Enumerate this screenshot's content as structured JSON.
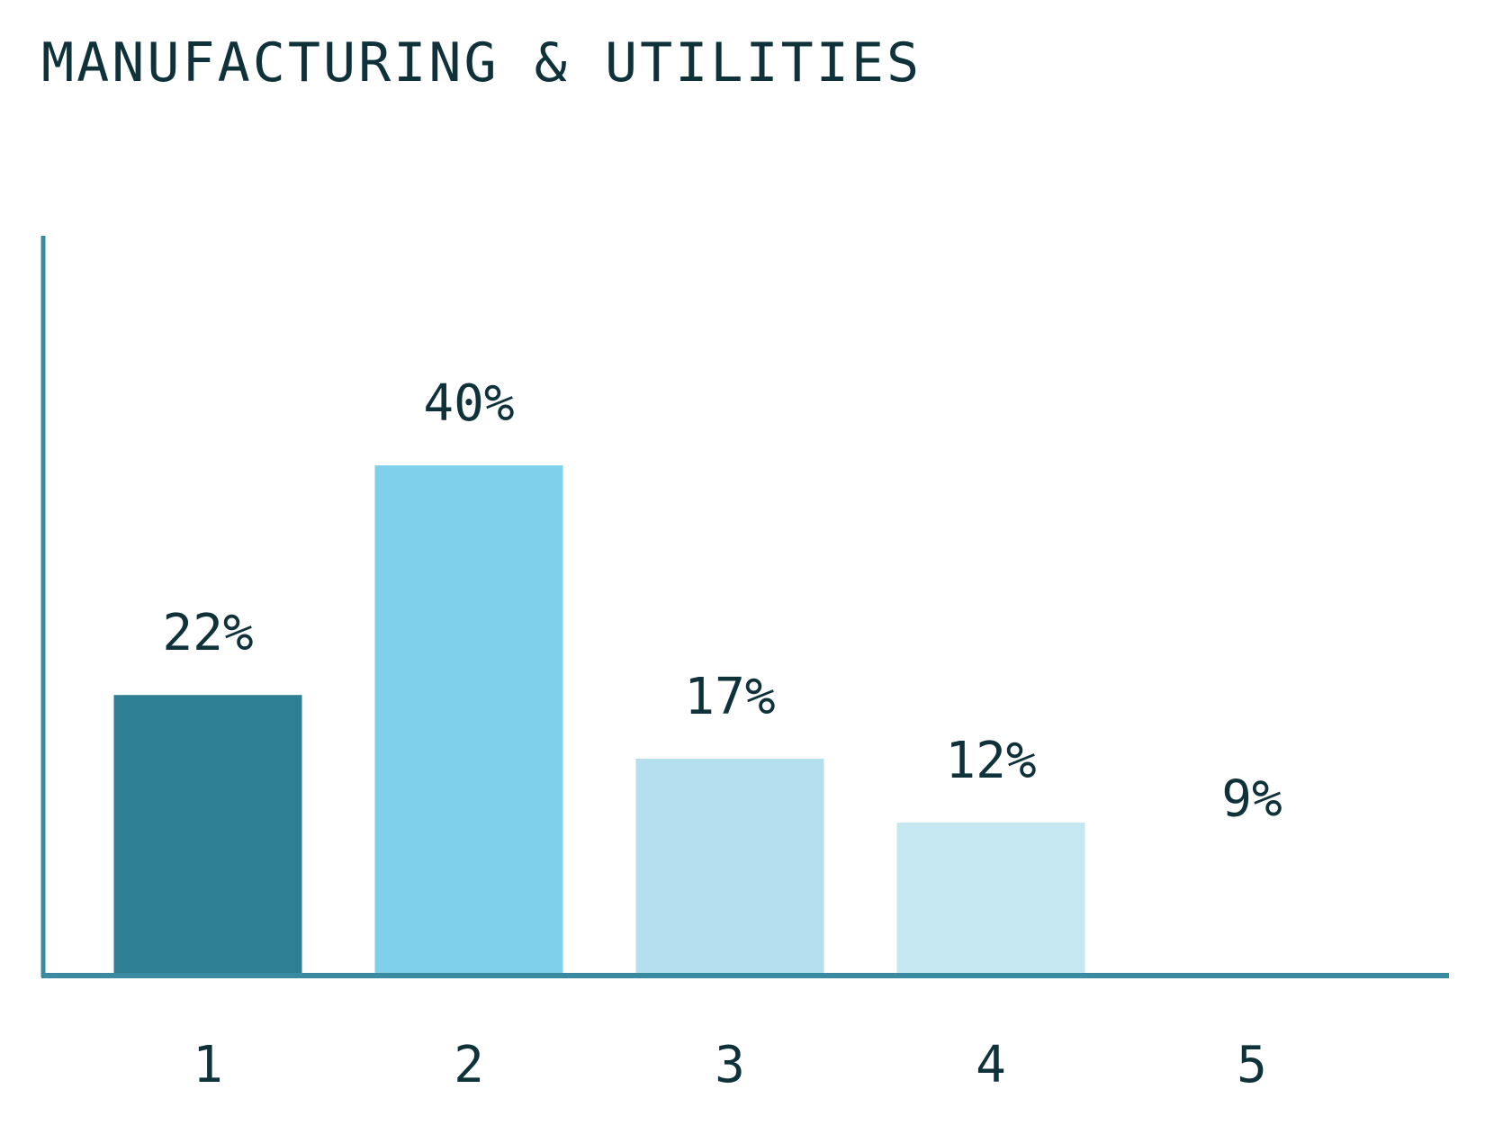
{
  "chart_data": {
    "type": "bar",
    "title": "MANUFACTURING & UTILITIES",
    "xlabel": "",
    "ylabel": "",
    "categories": [
      "1",
      "2",
      "3",
      "4",
      "5"
    ],
    "values": [
      22,
      40,
      17,
      12,
      9
    ],
    "value_labels": [
      "22%",
      "40%",
      "17%",
      "12%",
      "9%"
    ],
    "unit": "%",
    "ylim": [
      0,
      58
    ],
    "grid": false,
    "bar_colors": [
      "#2e7e94",
      "#7fd0ea",
      "#b3dfee",
      "#c5e7f2",
      "#ffffff"
    ],
    "axis_color": "#3a8aa0",
    "text_color": "#0f313a"
  }
}
